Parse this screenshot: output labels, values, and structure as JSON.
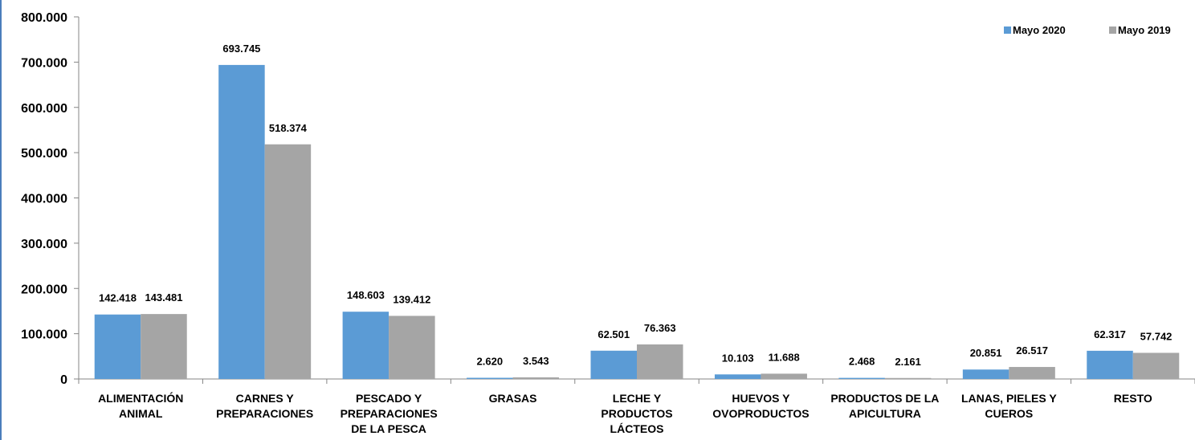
{
  "chart_data": {
    "type": "bar",
    "title": "",
    "xlabel": "",
    "ylabel": "",
    "ylim": [
      0,
      800000
    ],
    "yticks": [
      0,
      100000,
      200000,
      300000,
      400000,
      500000,
      600000,
      700000,
      800000
    ],
    "ytick_labels": [
      "0",
      "100.000",
      "200.000",
      "300.000",
      "400.000",
      "500.000",
      "600.000",
      "700.000",
      "800.000"
    ],
    "grid": false,
    "legend_position": "top-right",
    "categories": [
      [
        "ALIMENTACIÓN",
        "ANIMAL"
      ],
      [
        "CARNES Y",
        "PREPARACIONES"
      ],
      [
        "PESCADO Y",
        "PREPARACIONES",
        "DE LA PESCA"
      ],
      [
        "GRASAS"
      ],
      [
        "LECHE Y",
        "PRODUCTOS",
        "LÁCTEOS"
      ],
      [
        "HUEVOS Y",
        "OVOPRODUCTOS"
      ],
      [
        "PRODUCTOS DE LA",
        "APICULTURA"
      ],
      [
        "LANAS, PIELES Y",
        "CUEROS"
      ],
      [
        "RESTO"
      ]
    ],
    "series": [
      {
        "name": "Mayo 2020",
        "color": "#5b9bd5",
        "values": [
          142418,
          693745,
          148603,
          2620,
          62501,
          10103,
          2468,
          20851,
          62317
        ],
        "labels": [
          "142.418",
          "693.745",
          "148.603",
          "2.620",
          "62.501",
          "10.103",
          "2.468",
          "20.851",
          "62.317"
        ]
      },
      {
        "name": "Mayo 2019",
        "color": "#a5a5a5",
        "values": [
          143481,
          518374,
          139412,
          3543,
          76363,
          11688,
          2161,
          26517,
          57742
        ],
        "labels": [
          "143.481",
          "518.374",
          "139.412",
          "3.543",
          "76.363",
          "11.688",
          "2.161",
          "26.517",
          "57.742"
        ]
      }
    ]
  }
}
